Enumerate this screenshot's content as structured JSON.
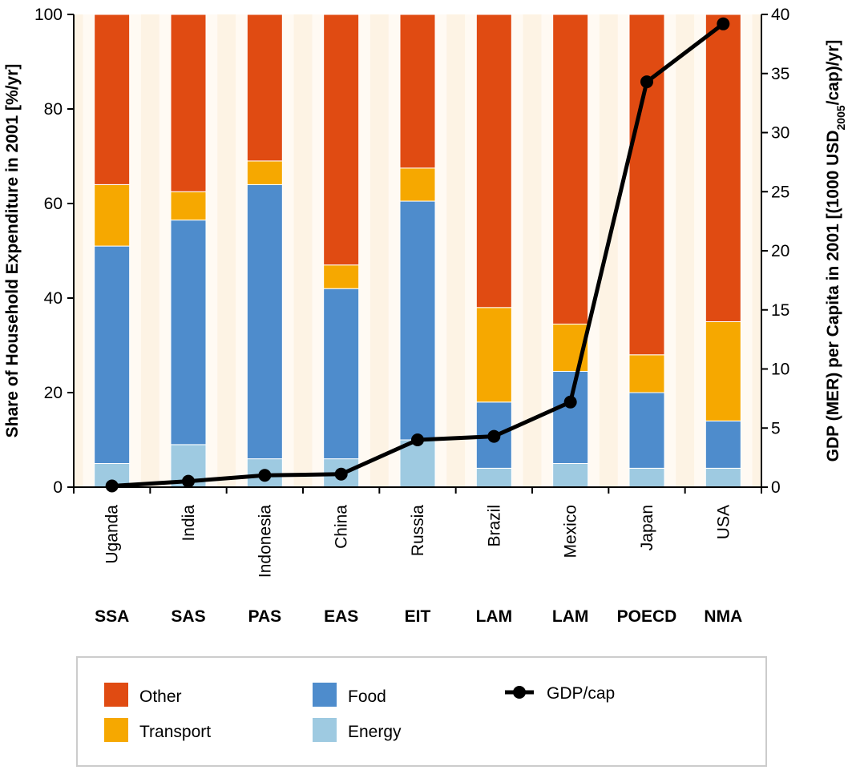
{
  "chart_data": {
    "type": "bar",
    "stacked": true,
    "categories": [
      "Uganda",
      "India",
      "Indonesia",
      "China",
      "Russia",
      "Brazil",
      "Mexico",
      "Japan",
      "USA"
    ],
    "regions": [
      "SSA",
      "SAS",
      "PAS",
      "EAS",
      "EIT",
      "LAM",
      "LAM",
      "POECD",
      "NMA"
    ],
    "series": [
      {
        "name": "Energy",
        "color": "#9ecae1",
        "values": [
          5,
          9,
          6,
          6,
          10,
          4,
          5,
          4,
          4
        ]
      },
      {
        "name": "Food",
        "color": "#4e8ccc",
        "values": [
          46,
          47.5,
          58,
          36,
          50.5,
          14,
          19.5,
          16,
          10
        ]
      },
      {
        "name": "Transport",
        "color": "#f6a800",
        "values": [
          13,
          6,
          5,
          5,
          7,
          20,
          10,
          8,
          21
        ]
      },
      {
        "name": "Other",
        "color": "#e04b12",
        "values": [
          36,
          37.5,
          31,
          53,
          32.5,
          62,
          65.5,
          72,
          65
        ]
      }
    ],
    "line_series": {
      "name": "GDP/cap",
      "color": "#000000",
      "values": [
        0.1,
        0.5,
        1.0,
        1.1,
        4.0,
        4.3,
        7.2,
        34.3,
        39.2
      ]
    },
    "ylabel": "Share of Household Expenditure in 2001 [%/yr]",
    "ylabel_right_parts": [
      "GDP (MER) per Capita in 2001 [(1000 USD",
      "2005",
      "/cap)/yr]"
    ],
    "ylim": [
      0,
      100
    ],
    "ylim_right": [
      0,
      40
    ],
    "yticks": [
      0,
      20,
      40,
      60,
      80,
      100
    ],
    "yticks_right": [
      0,
      5,
      10,
      15,
      20,
      25,
      30,
      35,
      40
    ],
    "legend": {
      "placement": "bottom",
      "entries": [
        {
          "label": "Other",
          "color": "#e04b12",
          "kind": "box"
        },
        {
          "label": "Transport",
          "color": "#f6a800",
          "kind": "box"
        },
        {
          "label": "Food",
          "color": "#4e8ccc",
          "kind": "box"
        },
        {
          "label": "Energy",
          "color": "#9ecae1",
          "kind": "box"
        },
        {
          "label": "GDP/cap",
          "color": "#000000",
          "kind": "line"
        }
      ]
    },
    "plot_background": "#fdf3e4",
    "band_background": "#fffaf3"
  }
}
